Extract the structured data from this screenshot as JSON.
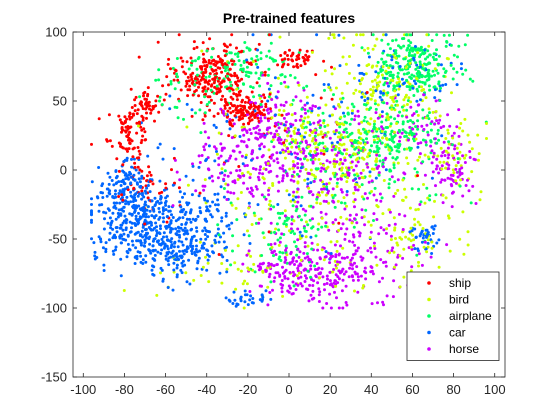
{
  "chart_data": {
    "type": "scatter",
    "title": "Pre-trained features",
    "xlabel": "",
    "ylabel": "",
    "xlim": [
      -105,
      105
    ],
    "ylim": [
      -150,
      100
    ],
    "xticks": [
      -100,
      -80,
      -60,
      -40,
      -20,
      0,
      20,
      40,
      60,
      80,
      100
    ],
    "yticks": [
      -150,
      -100,
      -50,
      0,
      50,
      100
    ],
    "grid": false,
    "legend_position": "bottom-right",
    "series": [
      {
        "name": "ship",
        "color": "#ff0000",
        "clusters": [
          {
            "cx": -38,
            "cy": 68,
            "sx": 10,
            "sy": 12,
            "n": 240
          },
          {
            "cx": -23,
            "cy": 42,
            "sx": 6,
            "sy": 6,
            "n": 110
          },
          {
            "cx": -78,
            "cy": 27,
            "sx": 5,
            "sy": 10,
            "n": 90
          },
          {
            "cx": -70,
            "cy": 48,
            "sx": 4,
            "sy": 6,
            "n": 45
          },
          {
            "cx": 3,
            "cy": 80,
            "sx": 5,
            "sy": 4,
            "n": 40
          },
          {
            "cx": -70,
            "cy": -10,
            "sx": 8,
            "sy": 10,
            "n": 45
          },
          {
            "cx": 0,
            "cy": 40,
            "sx": 30,
            "sy": 30,
            "n": 35
          }
        ]
      },
      {
        "name": "bird",
        "color": "#ccff00",
        "clusters": [
          {
            "cx": 45,
            "cy": 55,
            "sx": 15,
            "sy": 25,
            "n": 180
          },
          {
            "cx": 10,
            "cy": 0,
            "sx": 25,
            "sy": 35,
            "n": 200
          },
          {
            "cx": 60,
            "cy": -40,
            "sx": 15,
            "sy": 20,
            "n": 90
          },
          {
            "cx": 25,
            "cy": 15,
            "sx": 12,
            "sy": 12,
            "n": 90
          },
          {
            "cx": 80,
            "cy": 10,
            "sx": 8,
            "sy": 12,
            "n": 45
          },
          {
            "cx": -20,
            "cy": -70,
            "sx": 20,
            "sy": 15,
            "n": 60
          }
        ]
      },
      {
        "name": "airplane",
        "color": "#00ff66",
        "clusters": [
          {
            "cx": 62,
            "cy": 75,
            "sx": 10,
            "sy": 13,
            "n": 240
          },
          {
            "cx": 50,
            "cy": 25,
            "sx": 12,
            "sy": 12,
            "n": 160
          },
          {
            "cx": -20,
            "cy": 75,
            "sx": 10,
            "sy": 10,
            "n": 80
          },
          {
            "cx": 0,
            "cy": -45,
            "sx": 15,
            "sy": 18,
            "n": 90
          },
          {
            "cx": 20,
            "cy": 25,
            "sx": 15,
            "sy": 15,
            "n": 80
          },
          {
            "cx": -45,
            "cy": 60,
            "sx": 15,
            "sy": 15,
            "n": 60
          },
          {
            "cx": 40,
            "cy": 0,
            "sx": 20,
            "sy": 20,
            "n": 70
          }
        ]
      },
      {
        "name": "car",
        "color": "#0066ff",
        "clusters": [
          {
            "cx": -75,
            "cy": -35,
            "sx": 11,
            "sy": 16,
            "n": 320
          },
          {
            "cx": -55,
            "cy": -55,
            "sx": 11,
            "sy": 11,
            "n": 210
          },
          {
            "cx": -45,
            "cy": -35,
            "sx": 12,
            "sy": 14,
            "n": 110
          },
          {
            "cx": -80,
            "cy": -10,
            "sx": 6,
            "sy": 9,
            "n": 70
          },
          {
            "cx": 65,
            "cy": -50,
            "sx": 4,
            "sy": 5,
            "n": 40
          },
          {
            "cx": 0,
            "cy": 20,
            "sx": 35,
            "sy": 35,
            "n": 120
          },
          {
            "cx": 55,
            "cy": 70,
            "sx": 15,
            "sy": 15,
            "n": 60
          },
          {
            "cx": -20,
            "cy": -93,
            "sx": 5,
            "sy": 3,
            "n": 30
          }
        ]
      },
      {
        "name": "horse",
        "color": "#cc00ff",
        "clusters": [
          {
            "cx": 10,
            "cy": -75,
            "sx": 15,
            "sy": 12,
            "n": 240
          },
          {
            "cx": -10,
            "cy": 20,
            "sx": 13,
            "sy": 18,
            "n": 210
          },
          {
            "cx": 20,
            "cy": 0,
            "sx": 20,
            "sy": 25,
            "n": 200
          },
          {
            "cx": 80,
            "cy": 0,
            "sx": 6,
            "sy": 10,
            "n": 70
          },
          {
            "cx": 40,
            "cy": -60,
            "sx": 10,
            "sy": 15,
            "n": 80
          },
          {
            "cx": 65,
            "cy": 30,
            "sx": 10,
            "sy": 12,
            "n": 60
          },
          {
            "cx": -35,
            "cy": 0,
            "sx": 10,
            "sy": 15,
            "n": 50
          }
        ]
      }
    ]
  }
}
